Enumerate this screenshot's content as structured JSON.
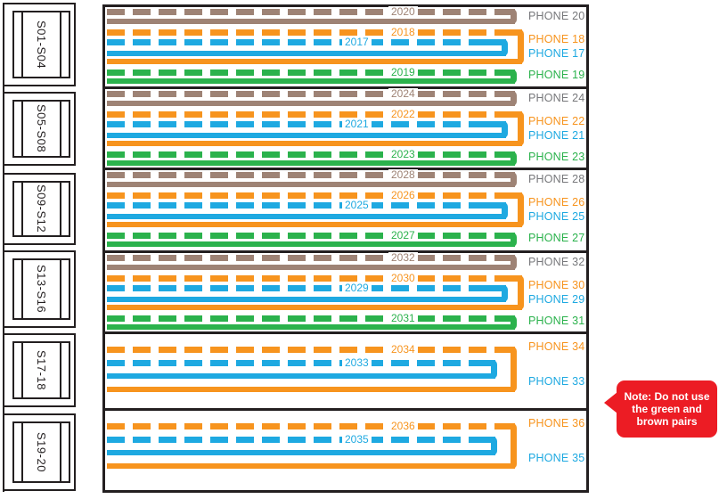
{
  "colors": {
    "brown": "#9e8375",
    "orange": "#f7941e",
    "blue": "#1ea9e1",
    "green": "#2bb24c",
    "gray": "#77787b",
    "red": "#ec1c24",
    "line": "#231f20"
  },
  "connector_blocks": [
    {
      "label": "S01-S04"
    },
    {
      "label": "S05-S08"
    },
    {
      "label": "S09-S12"
    },
    {
      "label": "S13-S16"
    },
    {
      "label": "S17-18"
    },
    {
      "label": "S19-20"
    }
  ],
  "sections": [
    {
      "block_label": "S01-S04",
      "type": "four_pair",
      "pairs": [
        {
          "role": "brown",
          "wire_number": "2020",
          "phone_label": "PHONE 20"
        },
        {
          "role": "orange",
          "wire_number": "2018",
          "phone_label": "PHONE 18"
        },
        {
          "role": "blue",
          "wire_number": "2017",
          "phone_label": "PHONE 17"
        },
        {
          "role": "green",
          "wire_number": "2019",
          "phone_label": "PHONE 19"
        }
      ]
    },
    {
      "block_label": "S05-S08",
      "type": "four_pair",
      "pairs": [
        {
          "role": "brown",
          "wire_number": "2024",
          "phone_label": "PHONE 24"
        },
        {
          "role": "orange",
          "wire_number": "2022",
          "phone_label": "PHONE 22"
        },
        {
          "role": "blue",
          "wire_number": "2021",
          "phone_label": "PHONE 21"
        },
        {
          "role": "green",
          "wire_number": "2023",
          "phone_label": "PHONE 23"
        }
      ]
    },
    {
      "block_label": "S09-S12",
      "type": "four_pair",
      "pairs": [
        {
          "role": "brown",
          "wire_number": "2028",
          "phone_label": "PHONE 28"
        },
        {
          "role": "orange",
          "wire_number": "2026",
          "phone_label": "PHONE 26"
        },
        {
          "role": "blue",
          "wire_number": "2025",
          "phone_label": "PHONE 25"
        },
        {
          "role": "green",
          "wire_number": "2027",
          "phone_label": "PHONE 27"
        }
      ]
    },
    {
      "block_label": "S13-S16",
      "type": "four_pair",
      "pairs": [
        {
          "role": "brown",
          "wire_number": "2032",
          "phone_label": "PHONE 32"
        },
        {
          "role": "orange",
          "wire_number": "2030",
          "phone_label": "PHONE 30"
        },
        {
          "role": "blue",
          "wire_number": "2029",
          "phone_label": "PHONE 29"
        },
        {
          "role": "green",
          "wire_number": "2031",
          "phone_label": "PHONE 31"
        }
      ]
    },
    {
      "block_label": "S17-18",
      "type": "two_pair",
      "pairs": [
        {
          "role": "orange",
          "wire_number": "2034",
          "phone_label": "PHONE 34"
        },
        {
          "role": "blue",
          "wire_number": "2033",
          "phone_label": "PHONE 33"
        }
      ]
    },
    {
      "block_label": "S19-20",
      "type": "two_pair",
      "pairs": [
        {
          "role": "orange",
          "wire_number": "2036",
          "phone_label": "PHONE 36"
        },
        {
          "role": "blue",
          "wire_number": "2035",
          "phone_label": "PHONE 35"
        }
      ]
    }
  ],
  "note": {
    "full": "Note: Do not use the green and brown pairs",
    "lines": [
      "Note: Do not use",
      "the green and",
      "brown pairs"
    ]
  }
}
